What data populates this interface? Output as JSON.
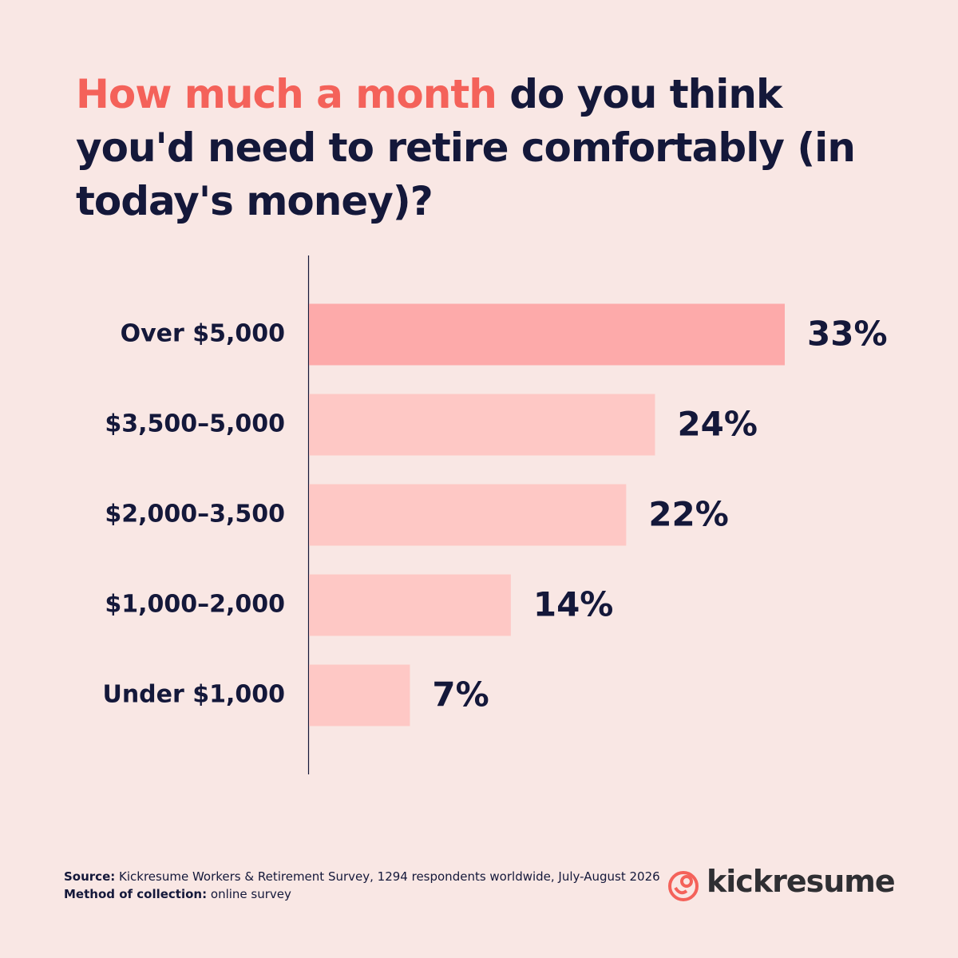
{
  "chart_data": {
    "type": "bar",
    "orientation": "horizontal",
    "title_highlight": "How much a month",
    "title": "do you think you'd need to retire comfortably (in today's money)?",
    "categories": [
      "Over $5,000",
      "$3,500–5,000",
      "$2,000–3,500",
      "$1,000–2,000",
      "Under $1,000"
    ],
    "values": [
      33,
      24,
      22,
      14,
      7
    ],
    "value_labels": [
      "33%",
      "24%",
      "22%",
      "14%",
      "7%"
    ],
    "colors": [
      "#fdaaaa",
      "#fec8c5",
      "#fec8c5",
      "#fec8c5",
      "#fec8c5"
    ]
  },
  "footer": {
    "source_label": "Source:",
    "source_text": "Kickresume Workers & Retirement Survey, 1294 respondents worldwide, July-August 2026",
    "method_label": "Method of collection:",
    "method_text": "online survey",
    "brand": "kickresume"
  }
}
